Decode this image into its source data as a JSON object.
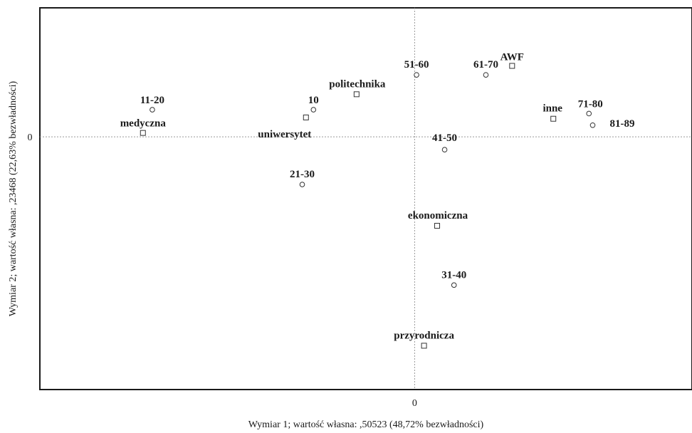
{
  "chart_data": {
    "type": "scatter",
    "title": "",
    "xlabel": "Wymiar 1; wartość własna:  ,50523 (48,72% bezwładności)",
    "ylabel": "Wymiar 2; wartość własna:  ,23468 (22,63% bezwładności)",
    "xlim": [
      -1.0,
      0.74
    ],
    "ylim": [
      -0.98,
      0.5
    ],
    "x_ticks": [
      {
        "value": 0,
        "label": "0"
      }
    ],
    "y_ticks": [
      {
        "value": 0,
        "label": "0"
      }
    ],
    "grid": false,
    "reference_lines": {
      "x": 0,
      "y": 0,
      "style": "dotted"
    },
    "series": [
      {
        "marker": "circle",
        "points": [
          {
            "label": "11-20",
            "x": -0.7,
            "y": 0.105
          },
          {
            "label": "10",
            "x": -0.27,
            "y": 0.105
          },
          {
            "label": "51-60",
            "x": 0.005,
            "y": 0.24
          },
          {
            "label": "61-70",
            "x": 0.19,
            "y": 0.24
          },
          {
            "label": "71-80",
            "x": 0.465,
            "y": 0.09
          },
          {
            "label": "81-89",
            "x": 0.475,
            "y": 0.045
          },
          {
            "label": "41-50",
            "x": 0.08,
            "y": -0.05
          },
          {
            "label": "21-30",
            "x": -0.3,
            "y": -0.185
          },
          {
            "label": "31-40",
            "x": 0.105,
            "y": -0.575
          }
        ]
      },
      {
        "marker": "square",
        "points": [
          {
            "label": "medyczna",
            "x": -0.725,
            "y": 0.015
          },
          {
            "label": "uniwersytet",
            "x": -0.29,
            "y": 0.075
          },
          {
            "label": "politechnika",
            "x": -0.155,
            "y": 0.165
          },
          {
            "label": "AWF",
            "x": 0.26,
            "y": 0.275
          },
          {
            "label": "inne",
            "x": 0.37,
            "y": 0.07
          },
          {
            "label": "ekonomiczna",
            "x": 0.06,
            "y": -0.345
          },
          {
            "label": "przyrodnicza",
            "x": 0.025,
            "y": -0.81
          }
        ]
      }
    ]
  }
}
